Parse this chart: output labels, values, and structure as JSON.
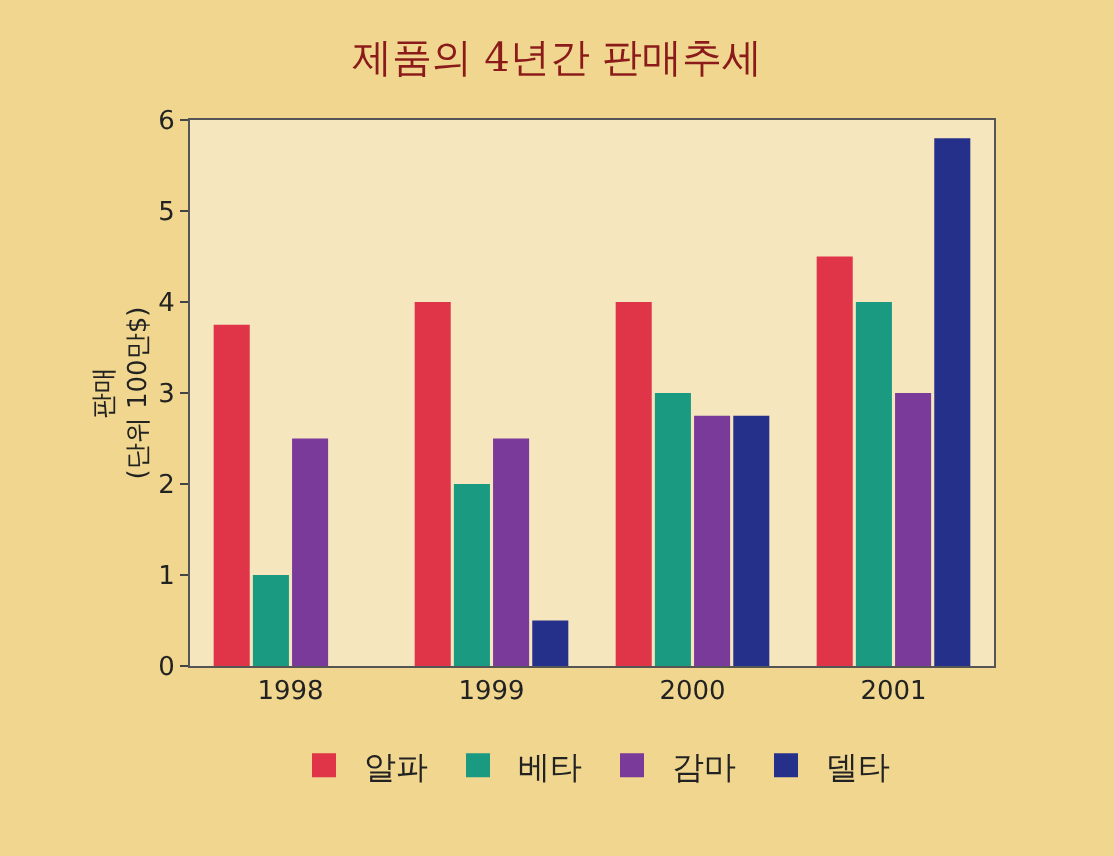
{
  "chart_data": {
    "type": "bar",
    "title": "제품의 4년간 판매추세",
    "ylabel": "판매\n(단위 100만$)",
    "categories": [
      "1998",
      "1999",
      "2000",
      "2001"
    ],
    "series": [
      {
        "name": "알파",
        "color": "#e03448",
        "values": [
          3.75,
          4,
          4,
          4.5
        ]
      },
      {
        "name": "베타",
        "color": "#1a9a80",
        "values": [
          1,
          2,
          3,
          4
        ]
      },
      {
        "name": "감마",
        "color": "#7a3a9a",
        "values": [
          2.5,
          2.5,
          2.75,
          3
        ]
      },
      {
        "name": "델타",
        "color": "#24308a",
        "values": [
          null,
          0.5,
          2.75,
          5.8
        ]
      }
    ],
    "ylim": [
      0,
      6
    ],
    "yticks": [
      0,
      1,
      2,
      3,
      4,
      5,
      6
    ],
    "grid": false,
    "legend": "bottom"
  }
}
